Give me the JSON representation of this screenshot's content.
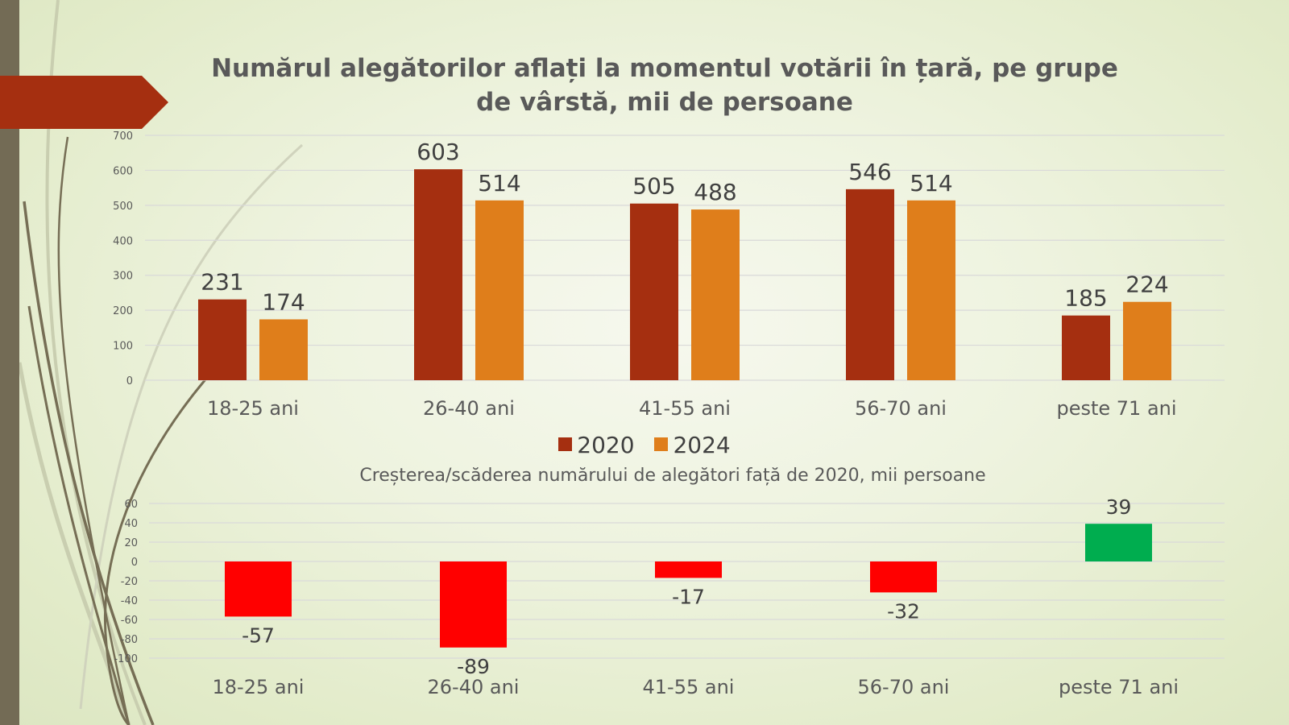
{
  "colors": {
    "series_2020": "#a52f10",
    "series_2024": "#df7e1b",
    "negative": "#ff0000",
    "positive": "#00ad4f",
    "title": "#595959",
    "sidebar": "#736b55",
    "banner": "#a52f10"
  },
  "slide": {
    "title": "Numărul alegătorilor aflați la momentul votării în țară, pe grupe de vârstă, mii de persoane"
  },
  "chart_data": [
    {
      "type": "bar",
      "title": "Numărul alegătorilor aflați la momentul votării în țară, pe grupe de vârstă, mii de persoane",
      "xlabel": "",
      "ylabel": "",
      "categories": [
        "18-25 ani",
        "26-40 ani",
        "41-55 ani",
        "56-70 ani",
        "peste 71 ani"
      ],
      "series": [
        {
          "name": "2020",
          "values": [
            231,
            603,
            505,
            546,
            185
          ]
        },
        {
          "name": "2024",
          "values": [
            174,
            514,
            488,
            514,
            224
          ]
        }
      ],
      "ylim": [
        0,
        700
      ],
      "yticks": [
        0,
        100,
        200,
        300,
        400,
        500,
        600,
        700
      ],
      "grid": true,
      "legend": "bottom",
      "data_labels": true
    },
    {
      "type": "bar",
      "title": "Creșterea/scăderea numărului de alegători față de 2020, mii persoane",
      "xlabel": "",
      "ylabel": "",
      "categories": [
        "18-25 ani",
        "26-40 ani",
        "41-55 ani",
        "56-70 ani",
        "peste 71 ani"
      ],
      "values": [
        -57,
        -89,
        -17,
        -32,
        39
      ],
      "ylim": [
        -100,
        60
      ],
      "yticks": [
        -100,
        -80,
        -60,
        -40,
        -20,
        0,
        20,
        40,
        60
      ],
      "grid": true,
      "data_labels": true
    }
  ]
}
